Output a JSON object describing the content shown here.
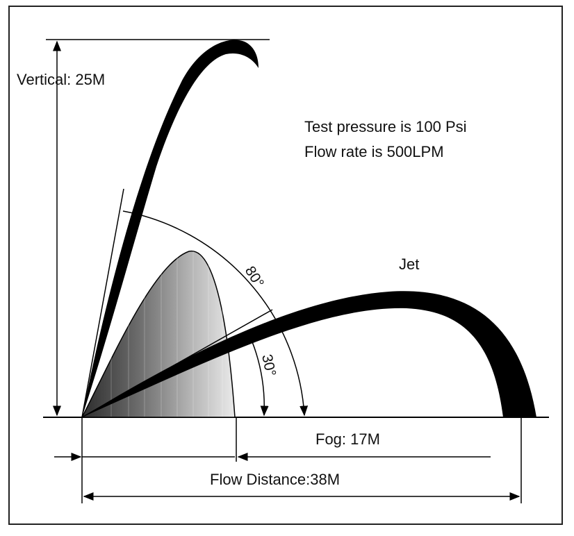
{
  "labels": {
    "vertical": "Vertical: 25M",
    "test_pressure": "Test pressure is 100 Psi",
    "flow_rate": "Flow rate is 500LPM",
    "jet": "Jet",
    "angle_80": "80°",
    "angle_30": "30°",
    "fog": "Fog: 17M",
    "flow_distance": "Flow Distance:38M"
  },
  "colors": {
    "ink": "#000000",
    "frame": "#222222",
    "fog_dark": "#3a3a3a",
    "fog_light": "#e6e6e6"
  }
}
